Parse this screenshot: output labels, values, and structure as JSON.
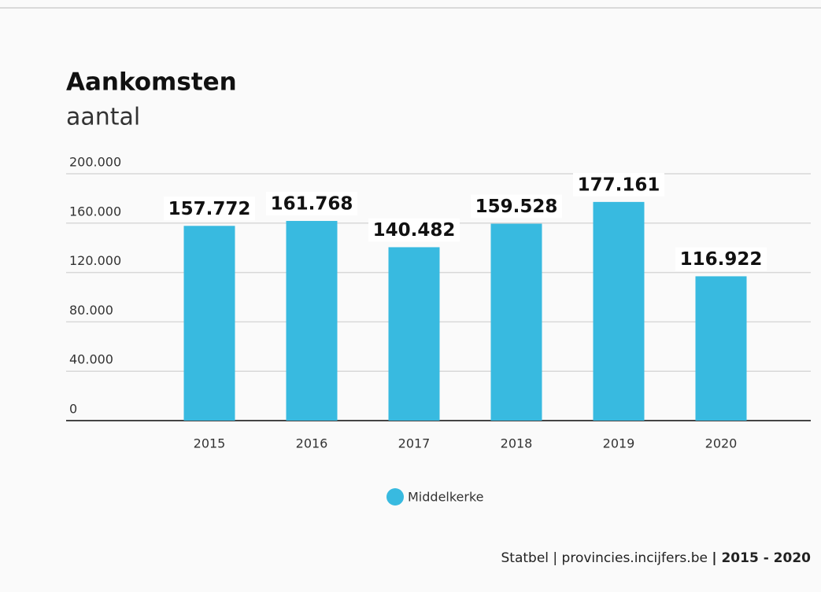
{
  "chart_data": {
    "type": "bar",
    "title": "Aankomsten",
    "subtitle": "aantal",
    "categories": [
      "2015",
      "2016",
      "2017",
      "2018",
      "2019",
      "2020"
    ],
    "series": [
      {
        "name": "Middelkerke",
        "color": "#38bae0",
        "values": [
          157772,
          161768,
          140482,
          159528,
          177161,
          116922
        ],
        "value_labels": [
          "157.772",
          "161.768",
          "140.482",
          "159.528",
          "177.161",
          "116.922"
        ]
      }
    ],
    "ylim": [
      0,
      200000
    ],
    "yticks": [
      0,
      {
        "value": 40000,
        "label": "40.000"
      },
      {
        "value": 80000,
        "label": "80.000"
      },
      {
        "value": 120000,
        "label": "120.000"
      },
      {
        "value": 160000,
        "label": "160.000"
      },
      {
        "value": 200000,
        "label": "200.000"
      }
    ],
    "grid": true,
    "source": "Statbel | provincies.incijfers.be",
    "period": "| 2015 - 2020"
  }
}
